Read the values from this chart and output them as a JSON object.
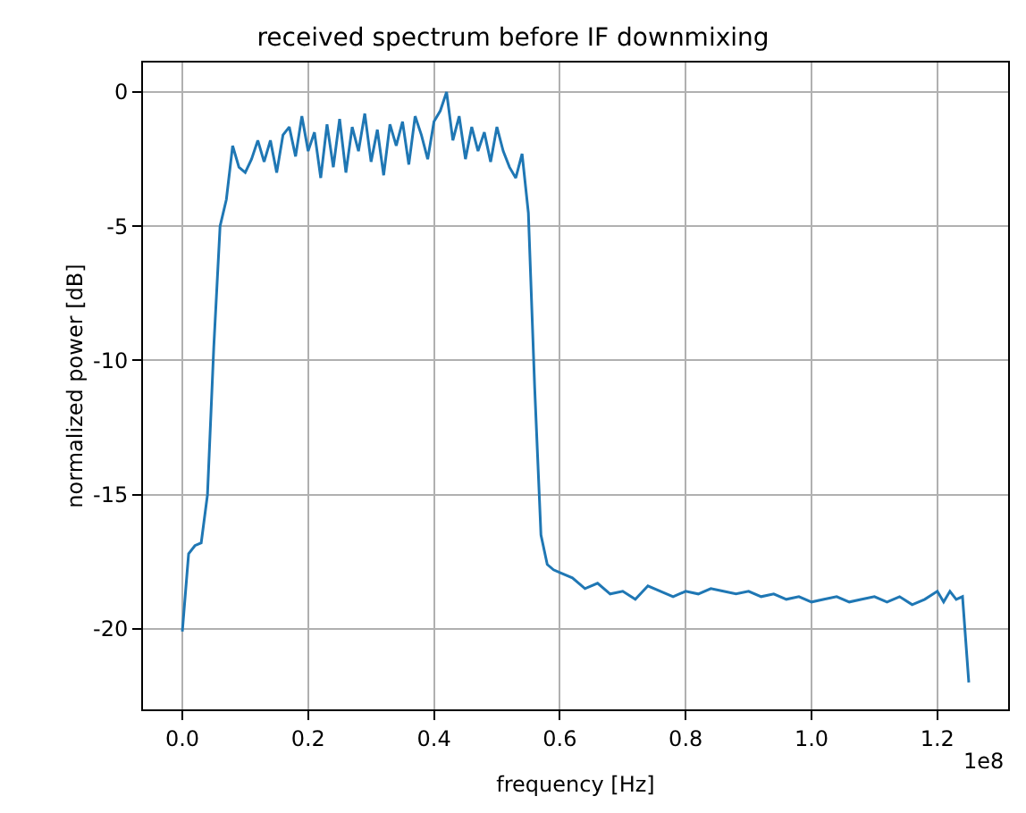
{
  "chart_data": {
    "type": "line",
    "title": "received spectrum before IF downmixing",
    "xlabel": "frequency [Hz]",
    "ylabel": "normalized power [dB]",
    "annotations": [
      "1e8"
    ],
    "xlim": [
      -0.0625,
      1.3125
    ],
    "ylim": [
      -23,
      1.1
    ],
    "xticks": [
      {
        "value": 0,
        "label": "0.0"
      },
      0.2,
      0.4,
      0.6,
      0.8,
      {
        "value": 1,
        "label": "1.0"
      },
      1.2
    ],
    "yticks": [
      -20,
      -15,
      -10,
      -5,
      0
    ],
    "grid": true,
    "series": [
      {
        "color": "#1f77b4",
        "line_style": "solid",
        "marker": "none",
        "x": [
          0,
          0.01,
          0.02,
          0.03,
          0.04,
          0.05,
          0.06,
          0.07,
          0.08,
          0.09,
          0.1,
          0.11,
          0.12,
          0.13,
          0.14,
          0.15,
          0.16,
          0.17,
          0.18,
          0.19,
          0.2,
          0.21,
          0.22,
          0.23,
          0.24,
          0.25,
          0.26,
          0.27,
          0.28,
          0.29,
          0.3,
          0.31,
          0.32,
          0.33,
          0.34,
          0.35,
          0.36,
          0.37,
          0.38,
          0.39,
          0.4,
          0.41,
          0.42,
          0.43,
          0.44,
          0.45,
          0.46,
          0.47,
          0.48,
          0.49,
          0.5,
          0.51,
          0.52,
          0.53,
          0.54,
          0.55,
          0.56,
          0.57,
          0.58,
          0.59,
          0.6,
          0.62,
          0.64,
          0.66,
          0.68,
          0.7,
          0.72,
          0.74,
          0.76,
          0.78,
          0.8,
          0.82,
          0.84,
          0.86,
          0.88,
          0.9,
          0.92,
          0.94,
          0.96,
          0.98,
          1.0,
          1.02,
          1.04,
          1.06,
          1.08,
          1.1,
          1.12,
          1.14,
          1.16,
          1.18,
          1.2,
          1.21,
          1.22,
          1.23,
          1.24,
          1.25
        ],
        "values": [
          -20.1,
          -17.2,
          -16.9,
          -16.8,
          -15.0,
          -9.5,
          -5.0,
          -4.0,
          -2.0,
          -2.8,
          -3.0,
          -2.5,
          -1.8,
          -2.6,
          -1.8,
          -3.0,
          -1.6,
          -1.3,
          -2.4,
          -0.9,
          -2.2,
          -1.5,
          -3.2,
          -1.2,
          -2.8,
          -1.0,
          -3.0,
          -1.3,
          -2.2,
          -0.8,
          -2.6,
          -1.4,
          -3.1,
          -1.2,
          -2.0,
          -1.1,
          -2.7,
          -0.9,
          -1.6,
          -2.5,
          -1.1,
          -0.7,
          0.0,
          -1.8,
          -0.9,
          -2.5,
          -1.3,
          -2.2,
          -1.5,
          -2.6,
          -1.3,
          -2.2,
          -2.8,
          -3.2,
          -2.3,
          -4.5,
          -11.0,
          -16.5,
          -17.6,
          -17.8,
          -17.9,
          -18.1,
          -18.5,
          -18.3,
          -18.7,
          -18.6,
          -18.9,
          -18.4,
          -18.6,
          -18.8,
          -18.6,
          -18.7,
          -18.5,
          -18.6,
          -18.7,
          -18.6,
          -18.8,
          -18.7,
          -18.9,
          -18.8,
          -19.0,
          -18.9,
          -18.8,
          -19.0,
          -18.9,
          -18.8,
          -19.0,
          -18.8,
          -19.1,
          -18.9,
          -18.6,
          -19.0,
          -18.6,
          -18.9,
          -18.8,
          -22.0
        ]
      }
    ]
  }
}
